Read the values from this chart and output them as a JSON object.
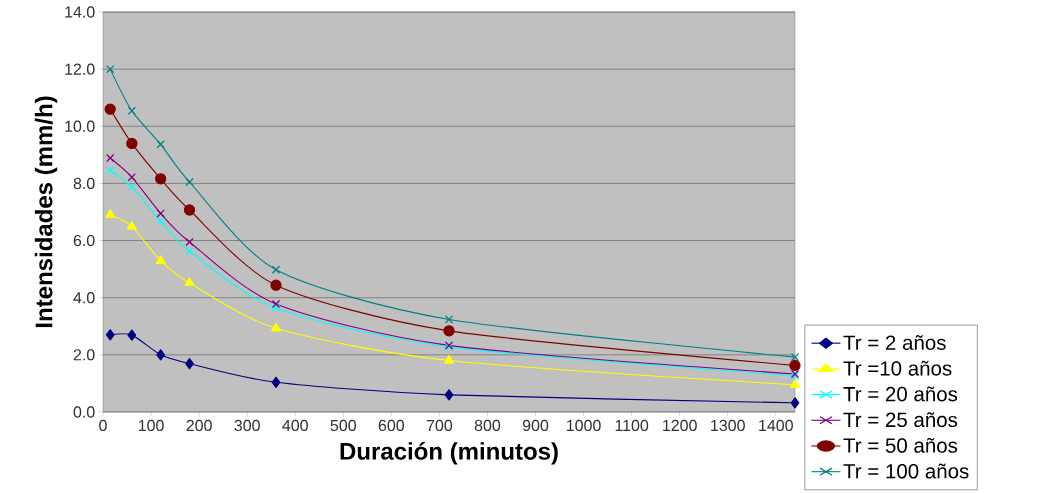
{
  "chart_data": {
    "type": "line",
    "xlabel": "Duración (minutos)",
    "ylabel": "Intensidades (mm/h)",
    "x": [
      15,
      60,
      120,
      180,
      360,
      720,
      1440
    ],
    "xlim": [
      0,
      1440
    ],
    "xticks": [
      0,
      100,
      200,
      300,
      400,
      500,
      600,
      700,
      800,
      900,
      1000,
      1100,
      1200,
      1300,
      1400
    ],
    "ylim": [
      0,
      14
    ],
    "yticks": [
      {
        "value": 0,
        "label": "0.0"
      },
      {
        "value": 2,
        "label": "2.0"
      },
      {
        "value": 4,
        "label": "4.0"
      },
      {
        "value": 6,
        "label": "6.0"
      },
      {
        "value": 8,
        "label": "8.0"
      },
      {
        "value": 10,
        "label": "10.0"
      },
      {
        "value": 12,
        "label": "12.0"
      },
      {
        "value": 14,
        "label": "14.0"
      }
    ],
    "grid": "y",
    "legend": "bottom right",
    "line_style": "solid",
    "series": [
      {
        "name": "Tr = 2 años",
        "color": "#000080",
        "marker": "diamond",
        "values": [
          2.7,
          2.69,
          2.0,
          1.69,
          1.04,
          0.6,
          0.32
        ]
      },
      {
        "name": "Tr =10 años",
        "color": "#ffff00",
        "marker": "triangle",
        "values": [
          6.9,
          6.49,
          5.29,
          4.52,
          2.93,
          1.8,
          0.95
        ]
      },
      {
        "name": "Tr = 20 años",
        "color": "#00ffff",
        "marker": "cross",
        "values": [
          8.46,
          7.88,
          6.68,
          5.63,
          3.64,
          2.28,
          1.27
        ]
      },
      {
        "name": "Tr = 25 años",
        "color": "#800080",
        "marker": "cross",
        "values": [
          8.89,
          8.22,
          6.95,
          5.95,
          3.78,
          2.33,
          1.33
        ]
      },
      {
        "name": "Tr = 50 años",
        "color": "#800000",
        "marker": "circle",
        "values": [
          10.6,
          9.4,
          8.16,
          7.07,
          4.44,
          2.84,
          1.63
        ]
      },
      {
        "name": "Tr = 100 años",
        "color": "#008080",
        "marker": "cross",
        "values": [
          12.0,
          10.54,
          9.37,
          8.05,
          4.98,
          3.24,
          1.92
        ]
      }
    ]
  }
}
